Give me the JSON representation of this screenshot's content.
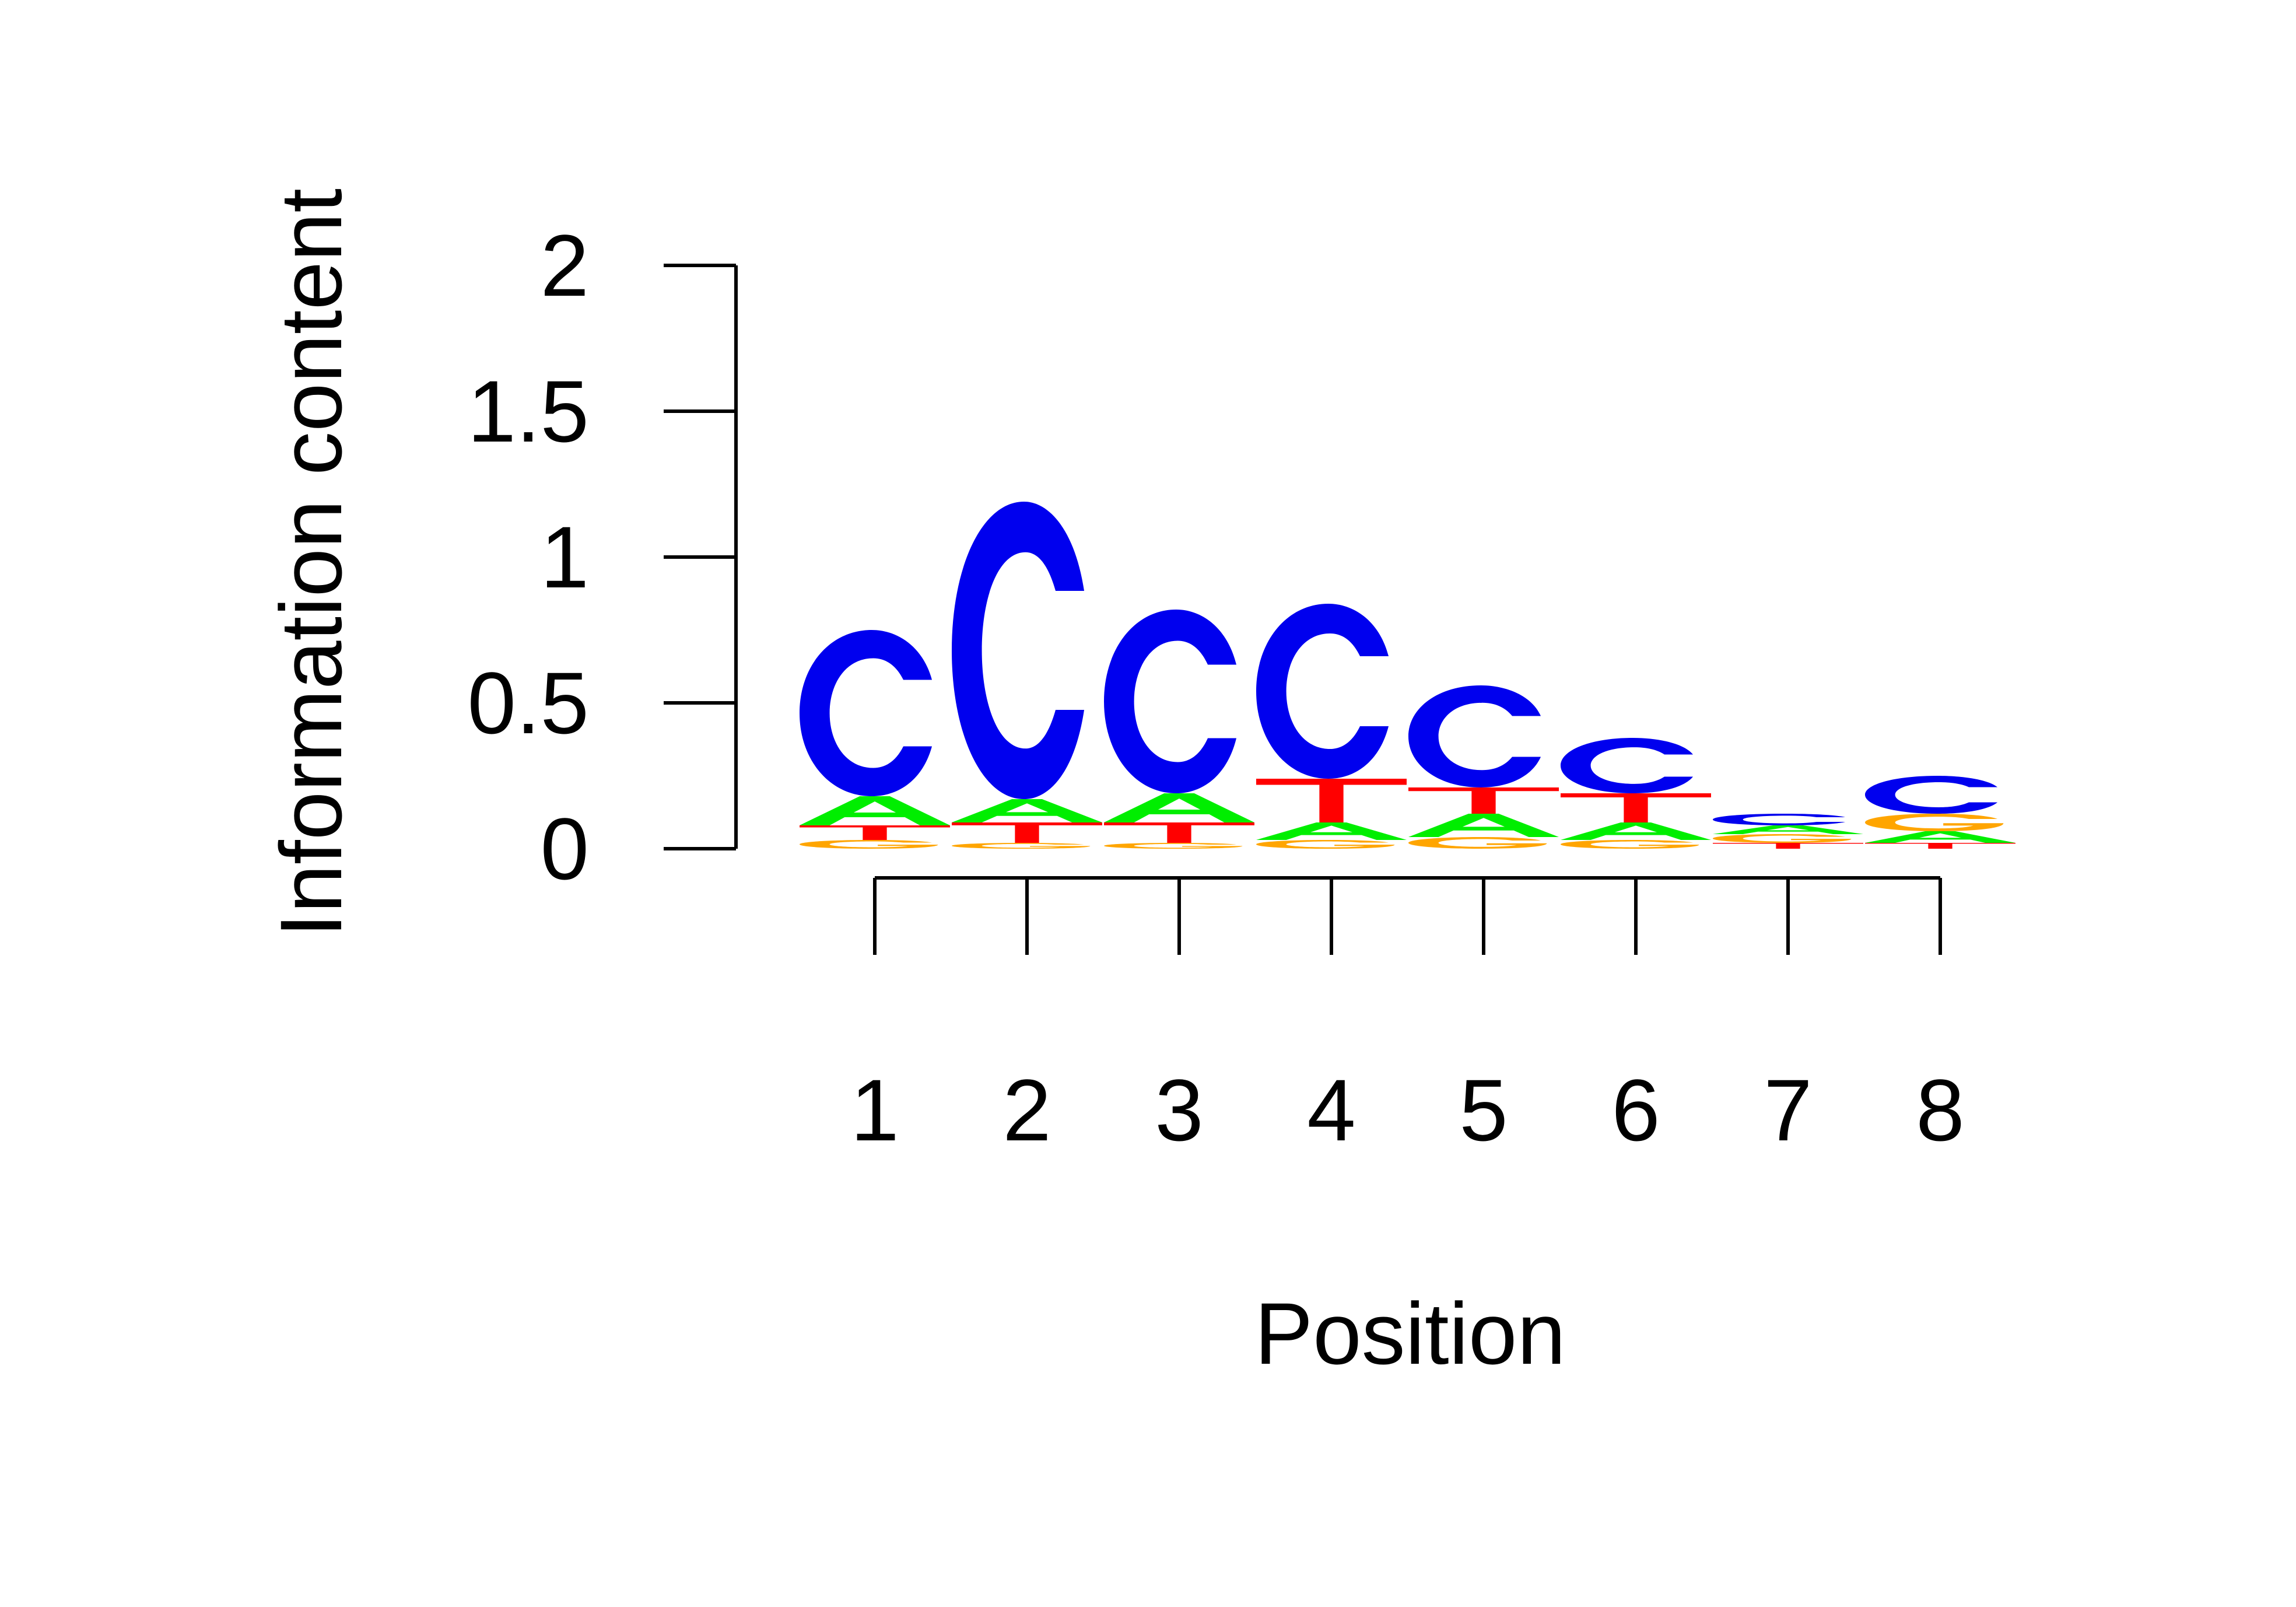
{
  "chart_data": {
    "type": "sequence-logo",
    "xlabel": "Position",
    "ylabel": "Information content",
    "ylim": [
      0,
      2
    ],
    "yticks": [
      "0",
      "0.5",
      "1",
      "1.5",
      "2"
    ],
    "positions": [
      "1",
      "2",
      "3",
      "4",
      "5",
      "6",
      "7",
      "8"
    ],
    "colors": {
      "A": "#00ee00",
      "C": "#0000ee",
      "G": "#ffa500",
      "T": "#ff0000"
    },
    "stacks": [
      [
        {
          "letter": "G",
          "value": 0.03
        },
        {
          "letter": "T",
          "value": 0.05
        },
        {
          "letter": "A",
          "value": 0.1
        },
        {
          "letter": "C",
          "value": 0.57
        }
      ],
      [
        {
          "letter": "G",
          "value": 0.02
        },
        {
          "letter": "T",
          "value": 0.07
        },
        {
          "letter": "A",
          "value": 0.08
        },
        {
          "letter": "C",
          "value": 1.02
        }
      ],
      [
        {
          "letter": "G",
          "value": 0.02
        },
        {
          "letter": "T",
          "value": 0.07
        },
        {
          "letter": "A",
          "value": 0.1
        },
        {
          "letter": "C",
          "value": 0.63
        }
      ],
      [
        {
          "letter": "G",
          "value": 0.03
        },
        {
          "letter": "A",
          "value": 0.06
        },
        {
          "letter": "T",
          "value": 0.15
        },
        {
          "letter": "C",
          "value": 0.6
        }
      ],
      [
        {
          "letter": "G",
          "value": 0.04
        },
        {
          "letter": "A",
          "value": 0.08
        },
        {
          "letter": "T",
          "value": 0.09
        },
        {
          "letter": "C",
          "value": 0.35
        }
      ],
      [
        {
          "letter": "G",
          "value": 0.03
        },
        {
          "letter": "A",
          "value": 0.06
        },
        {
          "letter": "T",
          "value": 0.1
        },
        {
          "letter": "C",
          "value": 0.19
        }
      ],
      [
        {
          "letter": "T",
          "value": 0.02
        },
        {
          "letter": "G",
          "value": 0.03
        },
        {
          "letter": "A",
          "value": 0.03
        },
        {
          "letter": "C",
          "value": 0.04
        }
      ],
      [
        {
          "letter": "T",
          "value": 0.02
        },
        {
          "letter": "A",
          "value": 0.04
        },
        {
          "letter": "G",
          "value": 0.06
        },
        {
          "letter": "C",
          "value": 0.13
        }
      ]
    ]
  }
}
